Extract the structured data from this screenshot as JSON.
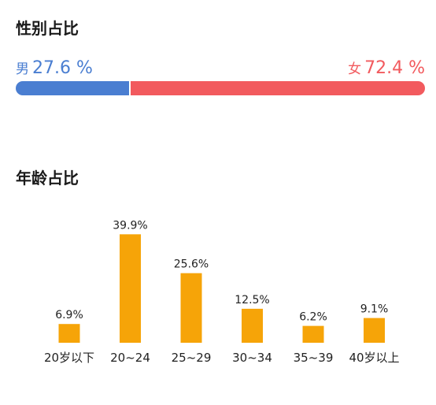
{
  "colors": {
    "male": "#4a7ed1",
    "female": "#f25a5e",
    "bar": "#f6a408",
    "text": "#222222"
  },
  "gender": {
    "title": "性别占比",
    "male": {
      "name": "男",
      "value": 27.6,
      "value_text": "27.6 %"
    },
    "female": {
      "name": "女",
      "value": 72.4,
      "value_text": "72.4 %"
    }
  },
  "age": {
    "title": "年龄占比"
  },
  "chart_data": {
    "type": "bar",
    "categories": [
      "20岁以下",
      "20~24",
      "25~29",
      "30~34",
      "35~39",
      "40岁以上"
    ],
    "values": [
      6.9,
      39.9,
      25.6,
      12.5,
      6.2,
      9.1
    ],
    "data_labels": [
      "6.9%",
      "39.9%",
      "25.6%",
      "12.5%",
      "6.2%",
      "9.1%"
    ],
    "ylim": [
      0,
      40
    ],
    "grid": false
  }
}
